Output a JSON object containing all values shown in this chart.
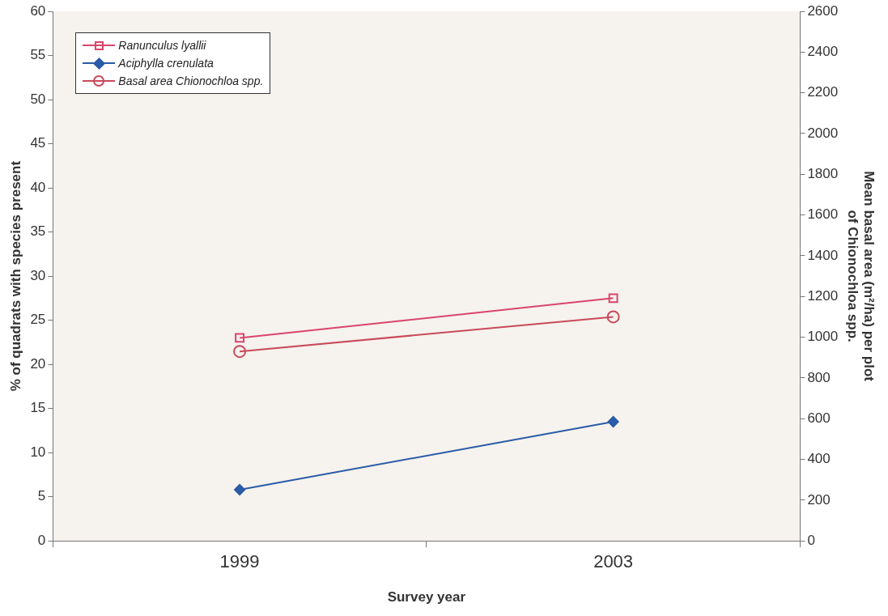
{
  "chart_data": {
    "type": "line",
    "xlabel": "Survey year",
    "ylabel": "% of quadrats with species present",
    "y2label": "Mean basal area (m²/ha) per plot of Chionochloa spp.",
    "categories": [
      "1999",
      "2003"
    ],
    "series": [
      {
        "name": "Ranunculus lyallii",
        "color": "#d9456b",
        "marker": "square",
        "values": [
          23,
          27.5
        ]
      },
      {
        "name": "Aciphylla crenulata",
        "color": "#2a5ca8",
        "marker": "diamond",
        "values": [
          5.8,
          13.5
        ]
      },
      {
        "name": "Basal area Chionochloa spp.",
        "color": "#c84a5a",
        "marker": "circle",
        "axis": "y2",
        "values": [
          930,
          1100
        ]
      }
    ],
    "ylim": [
      0,
      60
    ],
    "yticks": [
      0,
      5,
      10,
      15,
      20,
      25,
      30,
      35,
      40,
      45,
      50,
      55,
      60
    ],
    "y2lim": [
      0,
      2600
    ],
    "y2ticks": [
      0,
      200,
      400,
      600,
      800,
      1000,
      1200,
      1400,
      1600,
      1800,
      2000,
      2200,
      2400,
      2600
    ],
    "grid": false,
    "legend": "top left"
  }
}
